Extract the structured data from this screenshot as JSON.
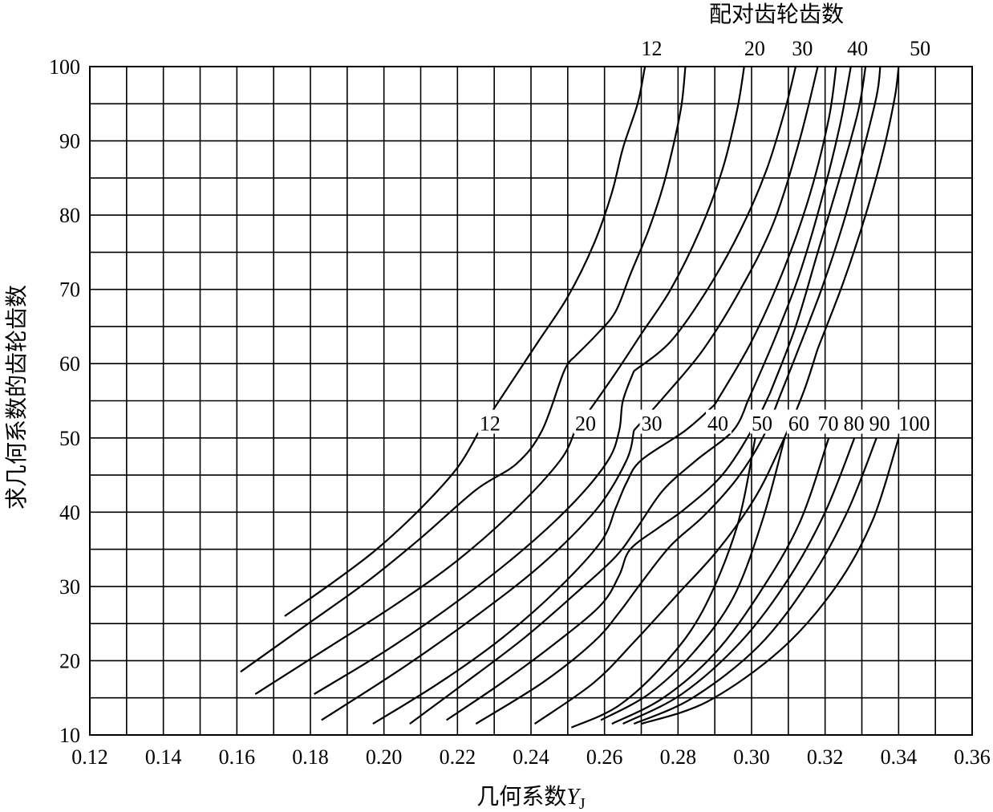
{
  "chart_data": {
    "type": "line",
    "title": "配对齿轮齿数",
    "xlabel": "几何系数",
    "xlabel_symbol": "Y",
    "xlabel_subscript": "J",
    "ylabel": "求几何系数的齿轮齿数",
    "xlim": [
      0.12,
      0.36
    ],
    "ylim": [
      10,
      100
    ],
    "grid": true,
    "x_ticks": [
      "0.12",
      "0.14",
      "0.16",
      "0.18",
      "0.20",
      "0.22",
      "0.24",
      "0.26",
      "0.28",
      "0.30",
      "0.32",
      "0.34",
      "0.36"
    ],
    "y_ticks": [
      "10",
      "20",
      "30",
      "40",
      "50",
      "60",
      "70",
      "80",
      "90",
      "100"
    ],
    "label_notes": {
      "lower_curve_labels_row": "12 20 30 40 50 60 70 80 90 100",
      "upper_curve_labels_row": "12 20 30 40 50"
    },
    "series": [
      {
        "name": "12",
        "label_position": "lower",
        "x": [
          0.173,
          0.186,
          0.198,
          0.21,
          0.22,
          0.226
        ],
        "y": [
          26,
          30.5,
          35,
          40.5,
          46,
          51
        ]
      },
      {
        "name": "12",
        "label_position": "upper",
        "x": [
          0.226,
          0.234,
          0.242,
          0.25,
          0.257,
          0.262,
          0.265,
          0.269,
          0.271
        ],
        "y": [
          51,
          57,
          63,
          69,
          76,
          83,
          89,
          95,
          100
        ]
      },
      {
        "name": "20",
        "label_position": "lower",
        "x": [
          0.161,
          0.178,
          0.195,
          0.21,
          0.225,
          0.236,
          0.243,
          0.249,
          0.252
        ],
        "y": [
          18.5,
          24.5,
          30.5,
          36.5,
          43,
          46.5,
          51,
          59,
          61
        ]
      },
      {
        "name": "20",
        "label_position": "upper",
        "x": [
          0.252,
          0.258,
          0.263,
          0.267,
          0.272,
          0.276,
          0.279,
          0.281,
          0.282
        ],
        "y": [
          61,
          64,
          67,
          72,
          78,
          84,
          90,
          95,
          100
        ]
      },
      {
        "name": "30",
        "label_position": "lower",
        "x": [
          0.165,
          0.184,
          0.203,
          0.22,
          0.236,
          0.248,
          0.252
        ],
        "y": [
          15.5,
          21.5,
          27.5,
          33.5,
          40.5,
          47,
          51
        ]
      },
      {
        "name": "30",
        "label_position": "upper",
        "x": [
          0.252,
          0.262,
          0.27,
          0.278,
          0.286,
          0.292,
          0.296,
          0.298
        ],
        "y": [
          51,
          58,
          64,
          70,
          78,
          86,
          94,
          100
        ]
      },
      {
        "name": "40",
        "label_position": "lower",
        "x": [
          0.181,
          0.201,
          0.22,
          0.238,
          0.252,
          0.261,
          0.264,
          0.265,
          0.268
        ],
        "y": [
          15.5,
          21.5,
          28,
          35,
          41.5,
          47,
          51,
          55,
          59
        ]
      },
      {
        "name": "40",
        "label_position": "upper",
        "x": [
          0.268,
          0.278,
          0.288,
          0.297,
          0.304,
          0.309,
          0.312
        ],
        "y": [
          59,
          63,
          70,
          78,
          86,
          94,
          100
        ]
      },
      {
        "name": "50",
        "label_position": "lower",
        "x": [
          0.183,
          0.205,
          0.225,
          0.243,
          0.258,
          0.266,
          0.268
        ],
        "y": [
          12,
          19,
          26,
          33,
          40.5,
          47,
          51
        ]
      },
      {
        "name": "50",
        "label_position": "upper",
        "x": [
          0.268,
          0.277,
          0.287,
          0.297,
          0.306,
          0.313,
          0.318
        ],
        "y": [
          51,
          56,
          62,
          70,
          79,
          90,
          100
        ]
      },
      {
        "name": "60",
        "label_position": "lower",
        "x": [
          0.197,
          0.215,
          0.232,
          0.247,
          0.259,
          0.263,
          0.266,
          0.27,
          0.282,
          0.29
        ],
        "y": [
          11.5,
          17,
          23,
          29.5,
          36,
          40.5,
          44,
          47,
          51,
          54.5
        ]
      },
      {
        "name": "60",
        "label_position": "upper",
        "x": [
          0.29,
          0.3,
          0.309,
          0.316,
          0.321,
          0.323
        ],
        "y": [
          54.5,
          63,
          73,
          83,
          93,
          100
        ]
      },
      {
        "name": "70",
        "label_position": "lower",
        "x": [
          0.207,
          0.222,
          0.238,
          0.252,
          0.263,
          0.269,
          0.276,
          0.285,
          0.295,
          0.299
        ],
        "y": [
          11.5,
          17,
          23,
          29,
          34,
          38,
          43,
          47,
          51,
          55
        ]
      },
      {
        "name": "70",
        "label_position": "upper",
        "x": [
          0.299,
          0.306,
          0.313,
          0.319,
          0.324,
          0.327
        ],
        "y": [
          55,
          63,
          72,
          82,
          92,
          100
        ]
      },
      {
        "name": "80",
        "label_position": "lower",
        "x": [
          0.217,
          0.232,
          0.247,
          0.259,
          0.264,
          0.267,
          0.275,
          0.282,
          0.292,
          0.3,
          0.305
        ],
        "y": [
          12,
          17,
          22.5,
          27.5,
          31.5,
          35,
          38,
          40.5,
          45,
          51,
          56
        ]
      },
      {
        "name": "80",
        "label_position": "upper",
        "x": [
          0.305,
          0.312,
          0.318,
          0.324,
          0.329,
          0.331
        ],
        "y": [
          56,
          65,
          75,
          85,
          94,
          100
        ]
      },
      {
        "name": "90",
        "label_position": "lower",
        "x": [
          0.225,
          0.243,
          0.257,
          0.264,
          0.27,
          0.278,
          0.287,
          0.296,
          0.303,
          0.308,
          0.312
        ],
        "y": [
          11.5,
          17,
          22.5,
          26.5,
          30.5,
          35.5,
          39.5,
          44.5,
          50,
          56,
          61
        ]
      },
      {
        "name": "90",
        "label_position": "upper",
        "x": [
          0.312,
          0.319,
          0.325,
          0.33,
          0.334,
          0.335
        ],
        "y": [
          61,
          70,
          79,
          88,
          96,
          100
        ]
      },
      {
        "name": "100",
        "label_position": "lower",
        "x": [
          0.241,
          0.257,
          0.268,
          0.28,
          0.291,
          0.301,
          0.308,
          0.314,
          0.318
        ],
        "y": [
          11.5,
          17,
          22.5,
          29,
          35,
          42,
          49,
          56,
          62
        ]
      },
      {
        "name": "100",
        "label_position": "upper",
        "x": [
          0.318,
          0.325,
          0.331,
          0.336,
          0.339,
          0.34
        ],
        "y": [
          62,
          71,
          80,
          89,
          96,
          100
        ]
      },
      {
        "name": "",
        "x": [
          0.251,
          0.264,
          0.277,
          0.287,
          0.296,
          0.301
        ],
        "y": [
          11,
          14,
          20,
          27,
          38,
          50
        ]
      },
      {
        "name": "",
        "x": [
          0.259,
          0.272,
          0.284,
          0.295,
          0.303,
          0.309
        ],
        "y": [
          12,
          15.5,
          21,
          28.5,
          39,
          50
        ]
      },
      {
        "name": "",
        "x": [
          0.262,
          0.276,
          0.29,
          0.302,
          0.313,
          0.321
        ],
        "y": [
          11.5,
          15,
          21,
          29,
          38.5,
          50
        ]
      },
      {
        "name": "",
        "x": [
          0.265,
          0.281,
          0.297,
          0.31,
          0.32,
          0.328
        ],
        "y": [
          11.5,
          15.5,
          22.5,
          31,
          40,
          50
        ]
      },
      {
        "name": "",
        "x": [
          0.268,
          0.284,
          0.302,
          0.316,
          0.326,
          0.334
        ],
        "y": [
          11.5,
          15,
          22,
          31,
          40,
          50
        ]
      },
      {
        "name": "",
        "x": [
          0.27,
          0.288,
          0.308,
          0.323,
          0.333,
          0.34
        ],
        "y": [
          11.5,
          14.5,
          21.5,
          30,
          39,
          50
        ]
      }
    ],
    "curve_labels_lower": [
      {
        "text": "12",
        "x": 0.226,
        "y": 51
      },
      {
        "text": "20",
        "x": 0.252,
        "y": 51
      },
      {
        "text": "30",
        "x": 0.27,
        "y": 51
      },
      {
        "text": "40",
        "x": 0.288,
        "y": 51
      },
      {
        "text": "50",
        "x": 0.3,
        "y": 51
      },
      {
        "text": "60",
        "x": 0.31,
        "y": 51
      },
      {
        "text": "70",
        "x": 0.318,
        "y": 51
      },
      {
        "text": "80",
        "x": 0.325,
        "y": 51
      },
      {
        "text": "90",
        "x": 0.332,
        "y": 51
      },
      {
        "text": "100",
        "x": 0.34,
        "y": 51
      }
    ],
    "curve_labels_upper": [
      {
        "text": "12",
        "x": 0.27,
        "y": 101.5
      },
      {
        "text": "20",
        "x": 0.298,
        "y": 101.5
      },
      {
        "text": "30",
        "x": 0.311,
        "y": 101.5
      },
      {
        "text": "40",
        "x": 0.326,
        "y": 101.5
      },
      {
        "text": "50",
        "x": 0.343,
        "y": 101.5
      }
    ]
  }
}
